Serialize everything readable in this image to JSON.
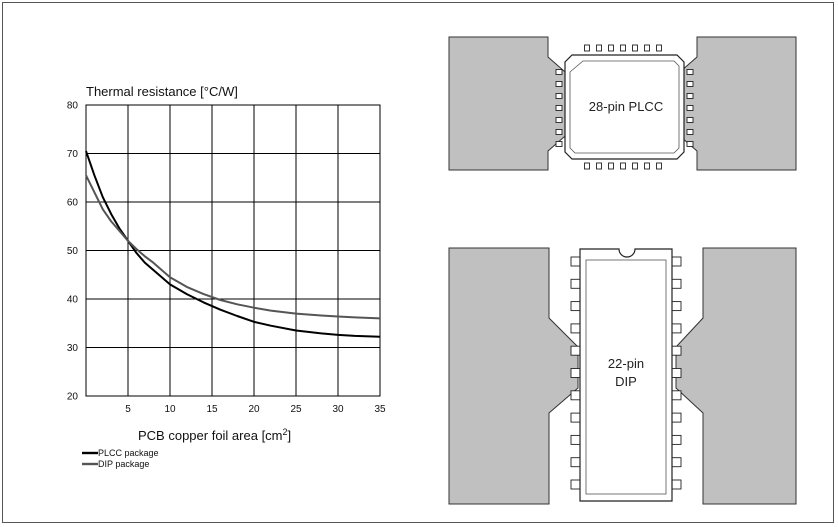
{
  "chart_data": {
    "type": "line",
    "title": "Thermal resistance [°C/W]",
    "xlabel": "PCB copper foil area  [cm",
    "xlabel_sup": "2",
    "xlabel_end": "]",
    "xlim": [
      0,
      35
    ],
    "ylim": [
      20,
      80
    ],
    "x_ticks": [
      "5",
      "10",
      "15",
      "20",
      "25",
      "30",
      "35"
    ],
    "y_ticks": [
      "20",
      "30",
      "40",
      "50",
      "60",
      "70",
      "80"
    ],
    "grid": true,
    "legend_position": "bottom-left",
    "series": [
      {
        "name": "PLCC package",
        "color": "#000000",
        "x": [
          0,
          1,
          2,
          3,
          4,
          5,
          6,
          7,
          8,
          10,
          12,
          14,
          16,
          18,
          20,
          22,
          25,
          28,
          30,
          32,
          35
        ],
        "values": [
          70.5,
          65.5,
          61,
          57.5,
          54.5,
          52,
          49.5,
          47.5,
          46,
          43,
          41,
          39.3,
          37.8,
          36.5,
          35.3,
          34.5,
          33.5,
          32.9,
          32.6,
          32.4,
          32.2
        ]
      },
      {
        "name": "DIP package",
        "color": "#555555",
        "x": [
          0,
          1,
          2,
          3,
          4,
          5,
          6,
          7,
          8,
          10,
          12,
          14,
          16,
          18,
          20,
          22,
          25,
          28,
          30,
          32,
          35
        ],
        "values": [
          65.5,
          62,
          58.5,
          56,
          54,
          52,
          50.3,
          48.8,
          47.5,
          44.5,
          42.5,
          41,
          39.8,
          38.9,
          38.2,
          37.6,
          37,
          36.6,
          36.4,
          36.2,
          36
        ]
      }
    ]
  },
  "diagrams": {
    "plcc_label": "28-pin PLCC",
    "dip_label_line1": "22-pin",
    "dip_label_line2": "DIP"
  }
}
